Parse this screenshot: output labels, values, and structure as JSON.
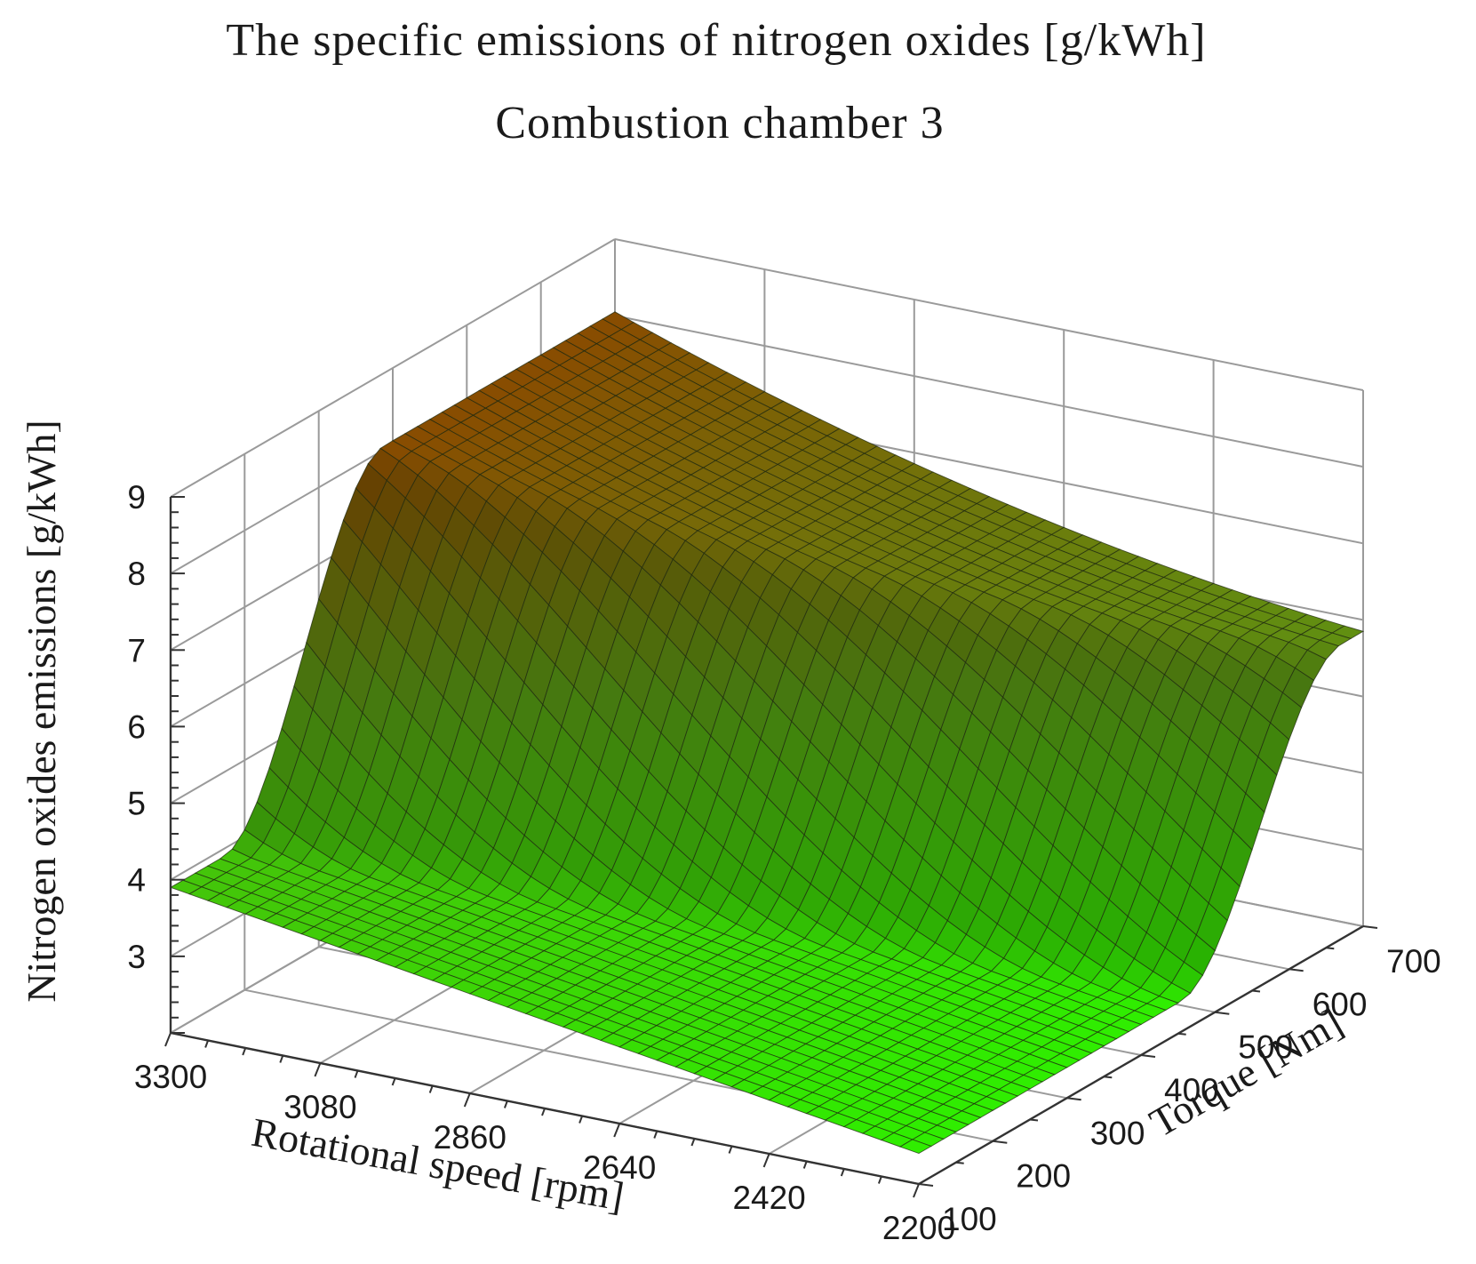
{
  "chart_data": {
    "type": "surface3d",
    "title": "The specific emissions of nitrogen oxides [g/kWh]",
    "subtitle": "Combustion chamber 3",
    "xlabel": "Rotational speed [rpm]",
    "ylabel": "Torque [Nm]",
    "zlabel": "Nitrogen oxides emissions [g/kWh]",
    "x_ticks": [
      "3300",
      "3080",
      "2860",
      "2640",
      "2420",
      "2200"
    ],
    "y_ticks": [
      "100",
      "200",
      "300",
      "400",
      "500",
      "600",
      "700"
    ],
    "z_ticks": [
      "9",
      "8",
      "7",
      "6",
      "5",
      "4",
      "3"
    ],
    "xlim": [
      2200,
      3300
    ],
    "ylim": [
      100,
      700
    ],
    "zlim": [
      2,
      9
    ],
    "grid": true,
    "colormap": {
      "low": "#2ef000",
      "mid": "#5a9a14",
      "high": "#8a4a00"
    },
    "surface_samples": [
      {
        "speed": 3300,
        "torque": 100,
        "nox": 3.9
      },
      {
        "speed": 3300,
        "torque": 700,
        "nox": 8.0
      },
      {
        "speed": 2200,
        "torque": 100,
        "nox": 2.4
      },
      {
        "speed": 2200,
        "torque": 700,
        "nox": 5.85
      },
      {
        "speed": 2750,
        "torque": 100,
        "nox": 3.1
      },
      {
        "speed": 2750,
        "torque": 700,
        "nox": 6.9
      }
    ]
  }
}
